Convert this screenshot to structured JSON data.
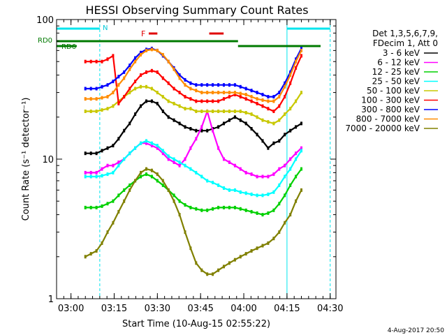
{
  "chart_data": {
    "type": "line",
    "title": "HESSI Observing Summary Count Rates",
    "xlabel": "Start Time (10-Aug-15 02:55:22)",
    "ylabel": "Count Rate (s⁻¹ detector⁻¹)",
    "y_scale": "log",
    "ylim": [
      1,
      100
    ],
    "xlim": [
      "02:55",
      "04:32"
    ],
    "x_ticks": [
      "03:00",
      "03:15",
      "03:30",
      "03:45",
      "04:00",
      "04:15",
      "04:30"
    ],
    "y_ticks": [
      "1",
      "10",
      "100"
    ],
    "header": [
      "Det 1,3,5,6,7,9,",
      "FDecim 1, Att 0"
    ],
    "footer": "4-Aug-2017 20:50",
    "annotations": {
      "rd0": "RD0",
      "rd6": "RD6",
      "n": "N",
      "f": "F"
    },
    "marker_colors": {
      "night": "#00e5ee",
      "flare": "#e00000",
      "rd": "#007a00"
    },
    "night_intervals": [
      [
        "02:55",
        "03:10"
      ],
      [
        "04:15",
        "04:30"
      ]
    ],
    "series": [
      {
        "name": "3 - 6 keV",
        "color": "#000000",
        "values": [
          11,
          11,
          11,
          11.5,
          12,
          12.5,
          14,
          16,
          18,
          21,
          24,
          26,
          26,
          25,
          22,
          20,
          19,
          18,
          17,
          16.5,
          16,
          16,
          16,
          16.5,
          17,
          18,
          19,
          20,
          19,
          18,
          16.5,
          15,
          13.5,
          12,
          13,
          13.5,
          15,
          16,
          17,
          18
        ]
      },
      {
        "name": "6 - 12 keV",
        "color": "#ff00ff",
        "values": [
          8,
          8,
          8,
          8.5,
          9,
          9,
          9.5,
          10,
          11,
          12,
          13,
          13,
          12.5,
          12,
          11,
          10,
          9.5,
          9,
          10,
          12,
          14,
          17,
          22,
          16,
          12,
          10,
          9.5,
          9,
          8.5,
          8,
          7.8,
          7.5,
          7.5,
          7.5,
          7.8,
          8.5,
          9,
          10,
          11,
          12
        ]
      },
      {
        "name": "12 - 25 keV",
        "color": "#00d000",
        "values": [
          4.5,
          4.5,
          4.5,
          4.6,
          4.8,
          5,
          5.5,
          6,
          6.5,
          7,
          7.5,
          7.8,
          7.5,
          7,
          6.5,
          6,
          5.5,
          5,
          4.7,
          4.5,
          4.4,
          4.3,
          4.3,
          4.4,
          4.5,
          4.5,
          4.5,
          4.5,
          4.4,
          4.3,
          4.2,
          4.1,
          4,
          4.1,
          4.3,
          4.8,
          5.5,
          6.5,
          7.5,
          8.5
        ]
      },
      {
        "name": "25 - 50 keV",
        "color": "#00ffff",
        "values": [
          7.5,
          7.5,
          7.5,
          7.6,
          7.8,
          8,
          9,
          10,
          11,
          12,
          13,
          13.5,
          13,
          12.5,
          11.5,
          10.5,
          10,
          9.5,
          9,
          8.5,
          8,
          7.5,
          7,
          6.8,
          6.5,
          6.2,
          6,
          6,
          5.8,
          5.7,
          5.6,
          5.5,
          5.5,
          5.6,
          5.8,
          6.5,
          7.5,
          8.5,
          10,
          11.5
        ]
      },
      {
        "name": "50 - 100 keV",
        "color": "#c8c800",
        "values": [
          22,
          22,
          22,
          22.5,
          23,
          24,
          26,
          28,
          30,
          32,
          33,
          33,
          32,
          30,
          28,
          26,
          25,
          24,
          23,
          23,
          22,
          22,
          22,
          22,
          22,
          22,
          22,
          22,
          22,
          21.5,
          21,
          20,
          19,
          18.5,
          18,
          19,
          21,
          23,
          26,
          30
        ]
      },
      {
        "name": "100 - 300 keV",
        "color": "#ff0000",
        "values": [
          50,
          50,
          50,
          50,
          52,
          55,
          25,
          28,
          32,
          36,
          40,
          42,
          43,
          42,
          38,
          35,
          32,
          30,
          28,
          27,
          26,
          26,
          26,
          26,
          26,
          27,
          28,
          29,
          28,
          27,
          26,
          25,
          24,
          23,
          22,
          24,
          28,
          35,
          45,
          55
        ]
      },
      {
        "name": "300 - 800 keV",
        "color": "#0000ff",
        "values": [
          32,
          32,
          32,
          33,
          34,
          36,
          39,
          42,
          47,
          53,
          58,
          61,
          62,
          60,
          55,
          50,
          45,
          40,
          37,
          35,
          34,
          34,
          34,
          34,
          34,
          34,
          34,
          34,
          33,
          32,
          31,
          30,
          29,
          28,
          28,
          30,
          35,
          42,
          52,
          62
        ]
      },
      {
        "name": "800 - 7000 keV",
        "color": "#ff8c00",
        "values": [
          27,
          27,
          27,
          27.5,
          28,
          30,
          34,
          38,
          44,
          50,
          56,
          60,
          61,
          60,
          56,
          50,
          44,
          38,
          34,
          32,
          31,
          30,
          30,
          30,
          30,
          30,
          30,
          30,
          29.5,
          29,
          28,
          27,
          26.5,
          26,
          26,
          28,
          33,
          40,
          50,
          60
        ]
      },
      {
        "name": "7000 - 20000 keV",
        "color": "#808000",
        "values": [
          2,
          2.1,
          2.2,
          2.5,
          3,
          3.5,
          4.2,
          5,
          6,
          7,
          8,
          8.5,
          8.3,
          7.8,
          7,
          6,
          5,
          4,
          3,
          2.3,
          1.8,
          1.6,
          1.5,
          1.5,
          1.6,
          1.7,
          1.8,
          1.9,
          2,
          2.1,
          2.2,
          2.3,
          2.4,
          2.5,
          2.7,
          3,
          3.5,
          4,
          5,
          6
        ]
      }
    ]
  }
}
